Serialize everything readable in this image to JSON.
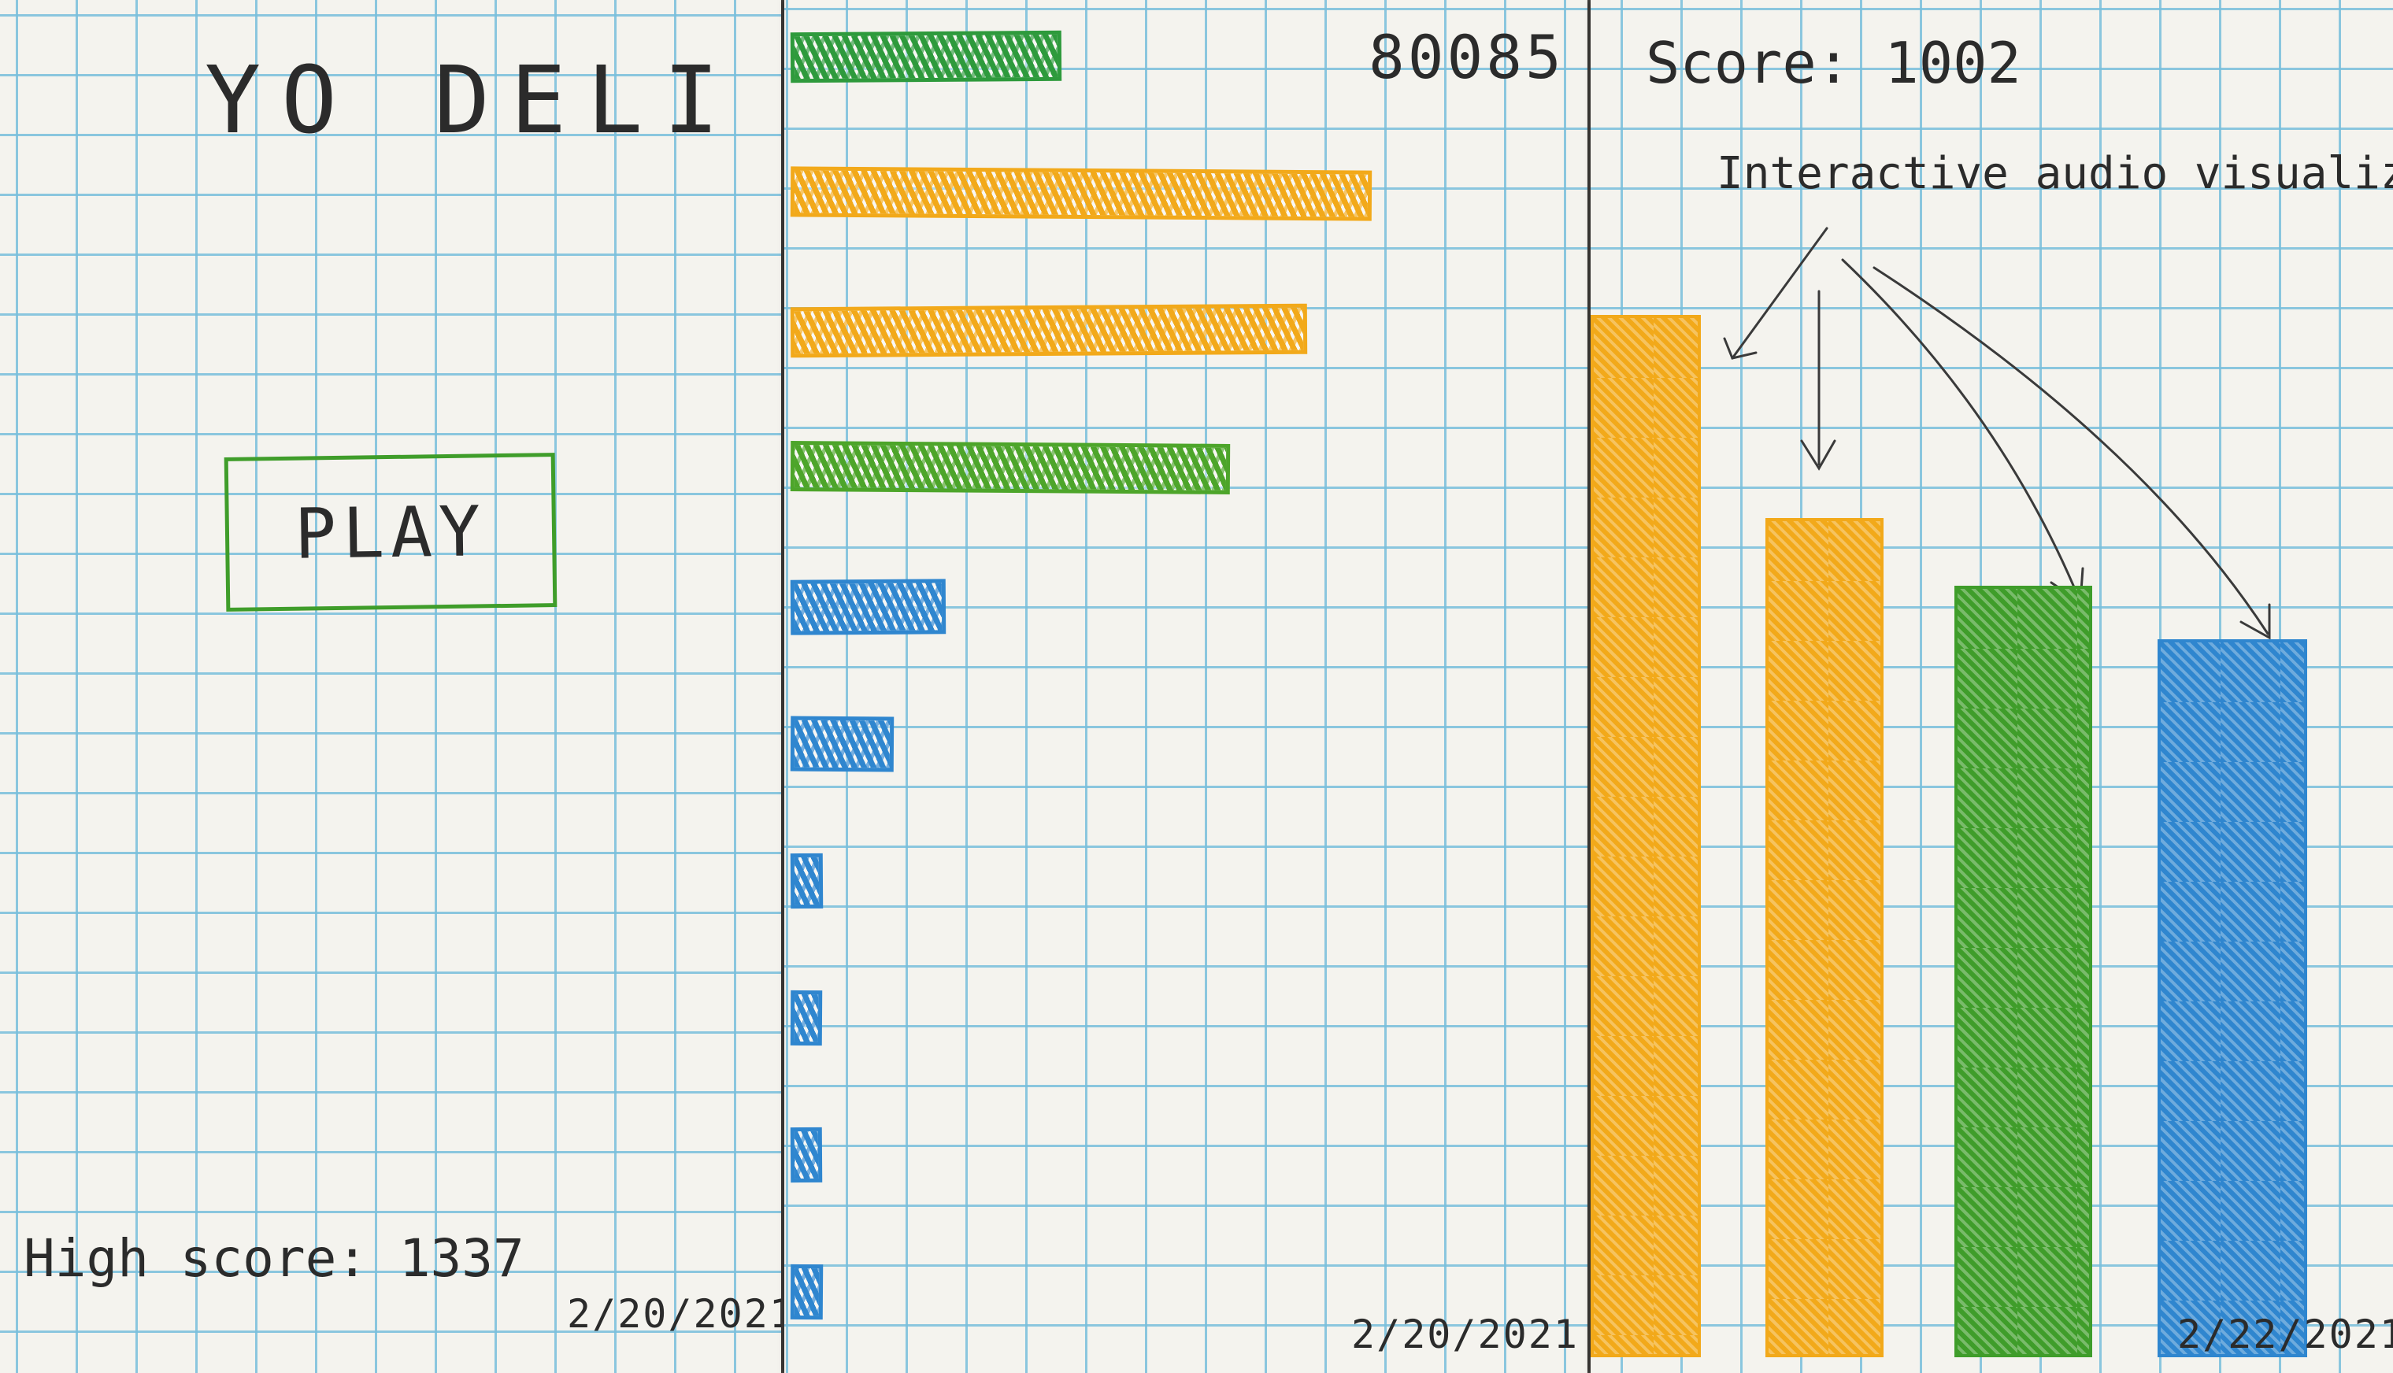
{
  "screen1": {
    "title": "YO DELI",
    "play_label": "PLAY",
    "high_score_text": "High score: 1337",
    "date": "2/20/2021"
  },
  "screen2": {
    "score": "80085",
    "date": "2/20/2021",
    "bars": [
      {
        "level": 0.42,
        "color": "#2e9a3c"
      },
      {
        "level": 0.9,
        "color": "#f2a91a"
      },
      {
        "level": 0.8,
        "color": "#f2a91a"
      },
      {
        "level": 0.68,
        "color": "#4da52a"
      },
      {
        "level": 0.24,
        "color": "#2f86cf"
      },
      {
        "level": 0.16,
        "color": "#2f86cf"
      },
      {
        "level": 0.05,
        "color": "#2f86cf"
      },
      {
        "level": 0.04,
        "color": "#2f86cf"
      },
      {
        "level": 0.04,
        "color": "#2f86cf"
      },
      {
        "level": 0.05,
        "color": "#2f86cf"
      }
    ]
  },
  "screen3": {
    "score_text": "Score: 1002",
    "annotation": "Interactive audio visualizer",
    "date": "2/22/2021",
    "bars": [
      {
        "level": 0.77,
        "color": "#f2a91a"
      },
      {
        "level": 0.62,
        "color": "#f2a91a"
      },
      {
        "level": 0.57,
        "color": "#3f9d2a"
      },
      {
        "level": 0.53,
        "color": "#2f86cf"
      }
    ]
  }
}
